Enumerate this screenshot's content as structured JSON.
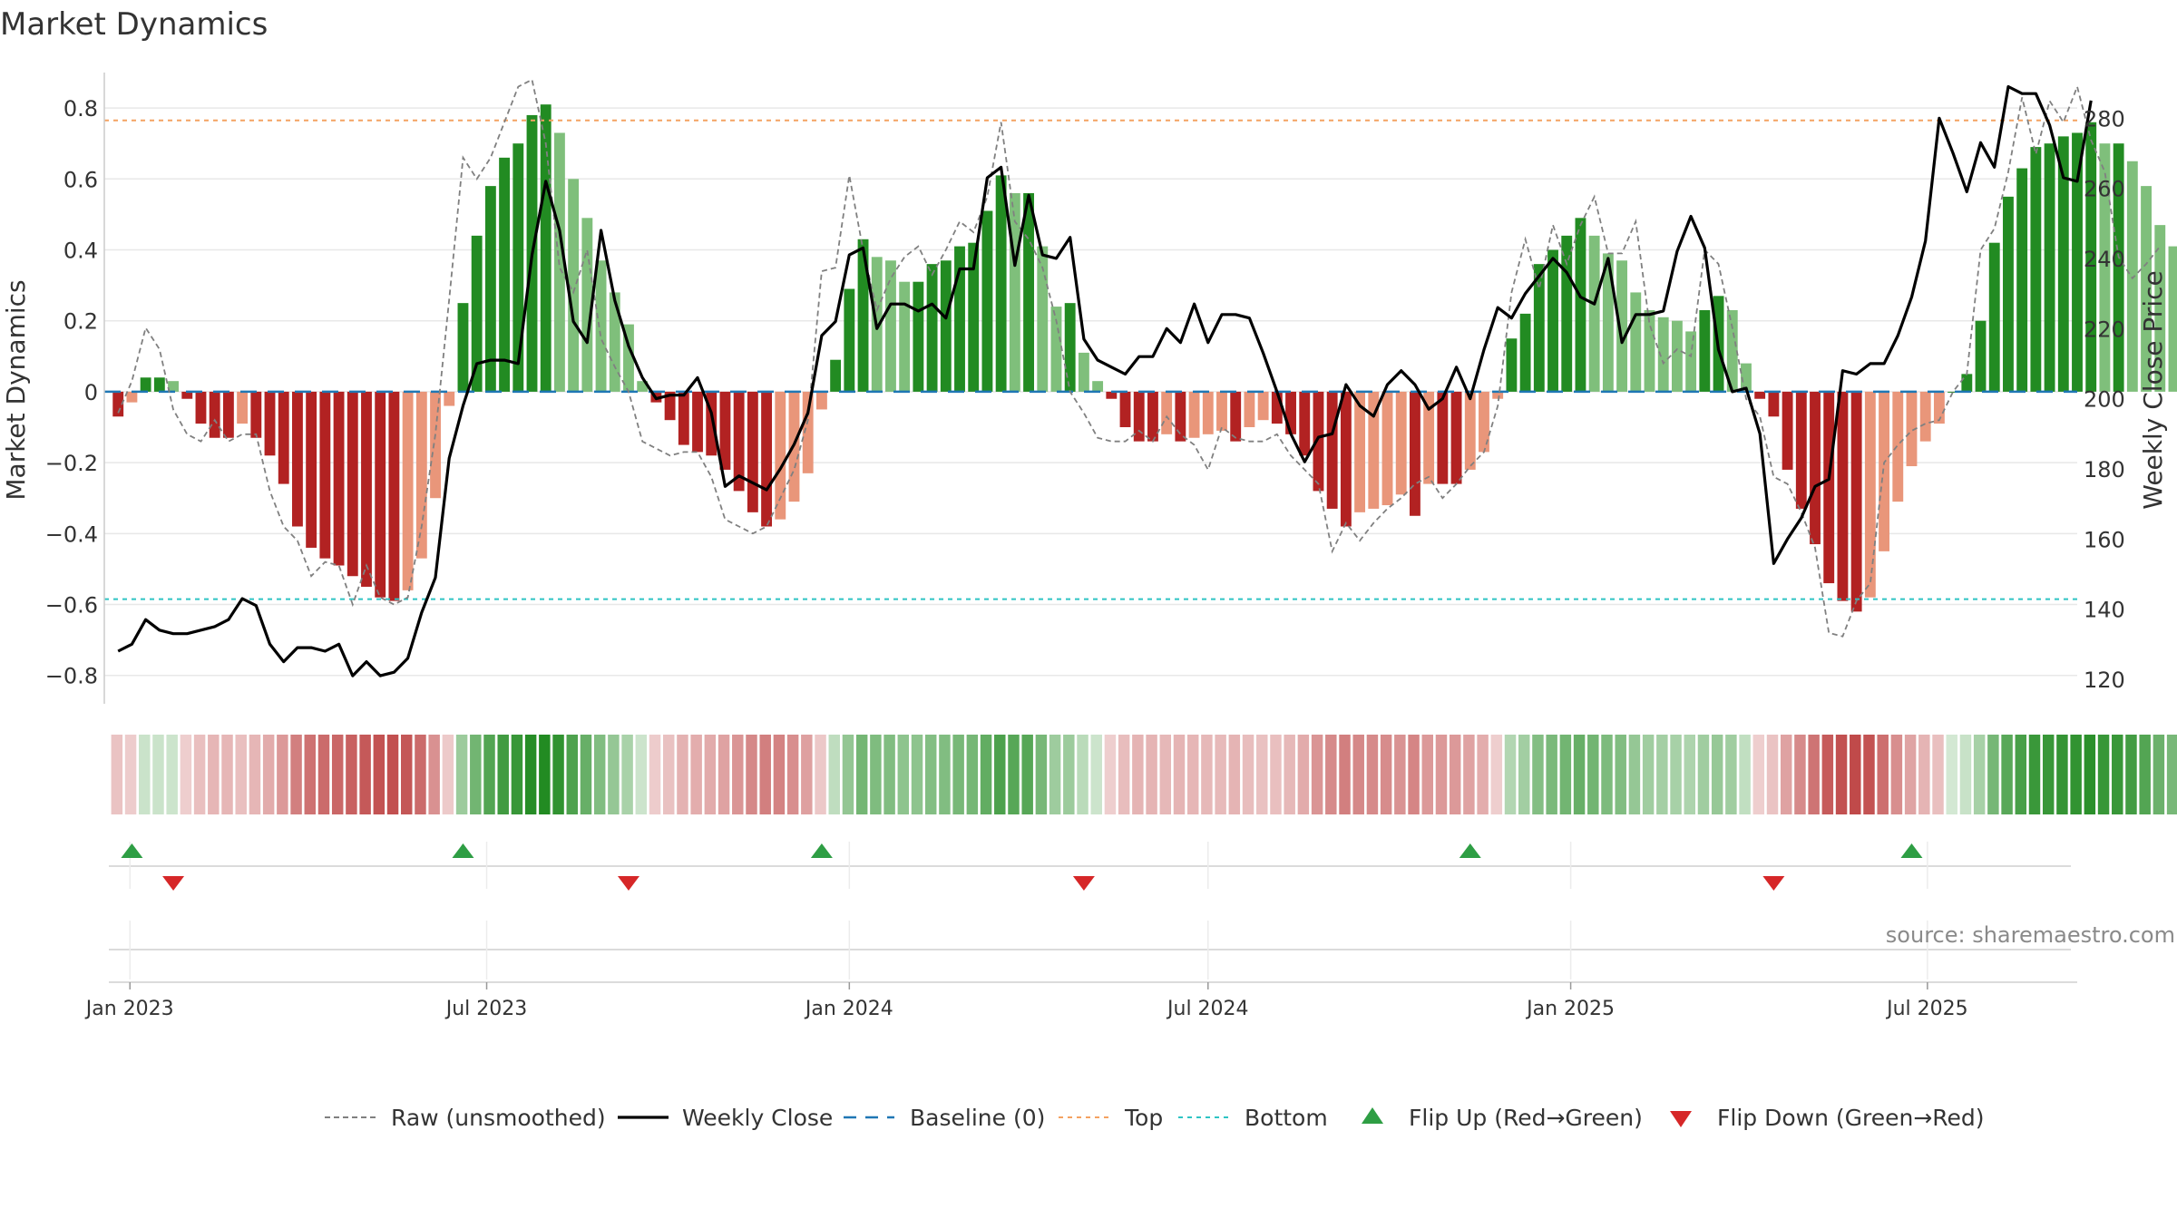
{
  "title": "Market Dynamics",
  "source": "source: sharemaestro.com",
  "colors": {
    "strong_green": "#228b22",
    "light_green": "#7fbf7b",
    "strong_red": "#b22222",
    "light_red": "#e9967a",
    "top_line": "#f4a261",
    "bottom_line": "#2ec4c4",
    "baseline": "#1f77b4",
    "raw_line": "#808080",
    "close_line": "#000000",
    "flip_up": "#2e9e44",
    "flip_down": "#d62728"
  },
  "chart_data": {
    "type": "bar",
    "title": "Market Dynamics",
    "ylabel": "Market Dynamics",
    "y2label": "Weekly Close Price",
    "ylim": [
      -0.88,
      0.9
    ],
    "y2lim": [
      113,
      293
    ],
    "yticks": [
      0.8,
      0.6,
      0.4,
      0.2,
      0,
      -0.2,
      -0.4,
      -0.6,
      -0.8
    ],
    "ytick_labels": [
      "0.8",
      "0.6",
      "0.4",
      "0.2",
      "0",
      "−0.2",
      "−0.4",
      "−0.6",
      "−0.8"
    ],
    "y2ticks": [
      280,
      260,
      240,
      220,
      200,
      180,
      160,
      140,
      120
    ],
    "xlim": [
      "2022-12-19",
      "2025-09-15"
    ],
    "xticks": [
      {
        "date": "2023-01-01",
        "label": "Jan 2023"
      },
      {
        "date": "2023-07-01",
        "label": "Jul 2023"
      },
      {
        "date": "2024-01-01",
        "label": "Jan 2024"
      },
      {
        "date": "2024-07-01",
        "label": "Jul 2024"
      },
      {
        "date": "2025-01-01",
        "label": "Jan 2025"
      },
      {
        "date": "2025-07-01",
        "label": "Jul 2025"
      }
    ],
    "top": 0.765,
    "bottom": -0.585,
    "baseline": 0,
    "legend": {
      "placement": "bottom",
      "entries": [
        "Raw (unsmoothed)",
        "Weekly Close",
        "Baseline (0)",
        "Top",
        "Bottom",
        "Flip Up (Red→Green)",
        "Flip Down (Green→Red)"
      ]
    },
    "start_date": "2022-12-26",
    "interval_days": 7,
    "series": [
      {
        "name": "Market Dynamics",
        "values": [
          -0.07,
          -0.03,
          0.04,
          0.04,
          0.03,
          -0.02,
          -0.09,
          -0.13,
          -0.13,
          -0.09,
          -0.13,
          -0.18,
          -0.26,
          -0.38,
          -0.44,
          -0.47,
          -0.49,
          -0.52,
          -0.55,
          -0.58,
          -0.59,
          -0.56,
          -0.47,
          -0.3,
          -0.04,
          0.25,
          0.44,
          0.58,
          0.66,
          0.7,
          0.78,
          0.81,
          0.73,
          0.6,
          0.49,
          0.37,
          0.28,
          0.19,
          0.03,
          -0.03,
          -0.08,
          -0.15,
          -0.17,
          -0.18,
          -0.22,
          -0.28,
          -0.34,
          -0.38,
          -0.36,
          -0.31,
          -0.23,
          -0.05,
          0.09,
          0.29,
          0.43,
          0.38,
          0.37,
          0.31,
          0.31,
          0.36,
          0.37,
          0.41,
          0.42,
          0.51,
          0.61,
          0.56,
          0.56,
          0.41,
          0.24,
          0.25,
          0.11,
          0.03,
          -0.02,
          -0.1,
          -0.14,
          -0.14,
          -0.12,
          -0.14,
          -0.13,
          -0.12,
          -0.11,
          -0.14,
          -0.1,
          -0.08,
          -0.09,
          -0.12,
          -0.18,
          -0.28,
          -0.33,
          -0.38,
          -0.34,
          -0.33,
          -0.32,
          -0.29,
          -0.35,
          -0.26,
          -0.26,
          -0.26,
          -0.22,
          -0.17,
          -0.02,
          0.15,
          0.22,
          0.36,
          0.4,
          0.44,
          0.49,
          0.44,
          0.39,
          0.37,
          0.28,
          0.23,
          0.21,
          0.2,
          0.17,
          0.23,
          0.27,
          0.23,
          0.08,
          -0.02,
          -0.07,
          -0.22,
          -0.33,
          -0.43,
          -0.54,
          -0.59,
          -0.62,
          -0.58,
          -0.45,
          -0.31,
          -0.21,
          -0.14,
          -0.09,
          0.0,
          0.05,
          0.2,
          0.42,
          0.55,
          0.63,
          0.69,
          0.7,
          0.72,
          0.73,
          0.76,
          0.7,
          0.7,
          0.65,
          0.58,
          0.47,
          0.41
        ]
      },
      {
        "name": "Raw (unsmoothed)",
        "values": [
          -0.06,
          0.03,
          0.18,
          0.12,
          -0.05,
          -0.12,
          -0.14,
          -0.08,
          -0.14,
          -0.12,
          -0.12,
          -0.28,
          -0.38,
          -0.42,
          -0.52,
          -0.48,
          -0.49,
          -0.6,
          -0.49,
          -0.58,
          -0.6,
          -0.58,
          -0.38,
          -0.12,
          0.26,
          0.66,
          0.6,
          0.66,
          0.76,
          0.86,
          0.88,
          0.7,
          0.35,
          0.28,
          0.4,
          0.15,
          0.07,
          0.0,
          -0.14,
          -0.16,
          -0.18,
          -0.17,
          -0.17,
          -0.24,
          -0.36,
          -0.38,
          -0.4,
          -0.38,
          -0.3,
          -0.22,
          -0.08,
          0.34,
          0.35,
          0.61,
          0.4,
          0.23,
          0.32,
          0.38,
          0.41,
          0.33,
          0.4,
          0.48,
          0.45,
          0.55,
          0.76,
          0.48,
          0.43,
          0.35,
          0.2,
          0.0,
          -0.06,
          -0.13,
          -0.14,
          -0.14,
          -0.11,
          -0.14,
          -0.07,
          -0.12,
          -0.15,
          -0.22,
          -0.1,
          -0.13,
          -0.14,
          -0.14,
          -0.12,
          -0.18,
          -0.22,
          -0.26,
          -0.45,
          -0.37,
          -0.42,
          -0.37,
          -0.33,
          -0.3,
          -0.26,
          -0.24,
          -0.3,
          -0.26,
          -0.21,
          -0.17,
          -0.04,
          0.28,
          0.43,
          0.29,
          0.47,
          0.36,
          0.47,
          0.55,
          0.39,
          0.39,
          0.48,
          0.19,
          0.08,
          0.12,
          0.1,
          0.4,
          0.36,
          0.18,
          -0.02,
          -0.07,
          -0.24,
          -0.26,
          -0.34,
          -0.44,
          -0.68,
          -0.69,
          -0.59,
          -0.54,
          -0.2,
          -0.15,
          -0.11,
          -0.09,
          -0.08,
          0.0,
          0.05,
          0.4,
          0.46,
          0.62,
          0.83,
          0.67,
          0.82,
          0.76,
          0.86,
          0.71,
          0.62,
          0.38,
          0.32,
          0.36,
          0.41
        ]
      },
      {
        "name": "Weekly Close",
        "axis": "right",
        "values": [
          128,
          130,
          137,
          134,
          133,
          133,
          134,
          135,
          137,
          143,
          141,
          130,
          125,
          129,
          129,
          128,
          130,
          121,
          125,
          121,
          122,
          126,
          139,
          149,
          183,
          198,
          210,
          211,
          211,
          210,
          241,
          262,
          248,
          222,
          216,
          248,
          228,
          215,
          206,
          200,
          201,
          201,
          206,
          196,
          175,
          178,
          176,
          174,
          180,
          187,
          196,
          218,
          222,
          241,
          243,
          220,
          227,
          227,
          225,
          227,
          223,
          237,
          237,
          263,
          266,
          238,
          258,
          241,
          240,
          246,
          217,
          211,
          209,
          207,
          212,
          212,
          220,
          216,
          227,
          216,
          224,
          224,
          223,
          213,
          202,
          190,
          182,
          189,
          190,
          204,
          198,
          195,
          204,
          208,
          204,
          197,
          200,
          209,
          200,
          214,
          226,
          223,
          230,
          235,
          240,
          236,
          229,
          227,
          240,
          216,
          224,
          224,
          225,
          242,
          252,
          243,
          214,
          202,
          203,
          190,
          153,
          160,
          166,
          175,
          177,
          208,
          207,
          210,
          210,
          218,
          229,
          245,
          280,
          270,
          259,
          273,
          266,
          289,
          287,
          287,
          278,
          263,
          262,
          285
        ]
      }
    ],
    "state_strip": [
      -0.07,
      -0.03,
      0.04,
      0.04,
      0.03,
      -0.02,
      -0.09,
      -0.13,
      -0.13,
      -0.09,
      -0.13,
      -0.18,
      -0.26,
      -0.38,
      -0.44,
      -0.47,
      -0.49,
      -0.52,
      -0.55,
      -0.58,
      -0.59,
      -0.56,
      -0.47,
      -0.3,
      -0.04,
      0.25,
      0.44,
      0.58,
      0.66,
      0.7,
      0.78,
      0.81,
      0.73,
      0.6,
      0.49,
      0.37,
      0.28,
      0.19,
      0.03,
      -0.03,
      -0.08,
      -0.15,
      -0.17,
      -0.18,
      -0.22,
      -0.28,
      -0.34,
      -0.38,
      -0.36,
      -0.31,
      -0.23,
      -0.05,
      0.09,
      0.29,
      0.43,
      0.38,
      0.37,
      0.31,
      0.31,
      0.36,
      0.37,
      0.41,
      0.42,
      0.51,
      0.61,
      0.56,
      0.56,
      0.41,
      0.24,
      0.25,
      0.11,
      0.03,
      -0.02,
      -0.1,
      -0.14,
      -0.14,
      -0.12,
      -0.14,
      -0.13,
      -0.12,
      -0.11,
      -0.14,
      -0.1,
      -0.08,
      -0.09,
      -0.12,
      -0.18,
      -0.28,
      -0.33,
      -0.38,
      -0.34,
      -0.33,
      -0.32,
      -0.29,
      -0.35,
      -0.26,
      -0.26,
      -0.26,
      -0.22,
      -0.17,
      -0.02,
      0.15,
      0.22,
      0.36,
      0.4,
      0.44,
      0.49,
      0.44,
      0.39,
      0.37,
      0.28,
      0.23,
      0.21,
      0.2,
      0.17,
      0.23,
      0.27,
      0.23,
      0.08,
      -0.02,
      -0.07,
      -0.22,
      -0.33,
      -0.43,
      -0.54,
      -0.59,
      -0.62,
      -0.58,
      -0.45,
      -0.31,
      -0.21,
      -0.14,
      -0.09,
      0.0,
      0.05,
      0.2,
      0.42,
      0.55,
      0.63,
      0.69,
      0.7,
      0.72,
      0.73,
      0.76,
      0.7,
      0.7,
      0.65,
      0.58,
      0.47,
      0.41
    ],
    "flips": [
      {
        "date": "2023-01-02",
        "type": "up"
      },
      {
        "date": "2023-01-23",
        "type": "down"
      },
      {
        "date": "2023-06-19",
        "type": "up"
      },
      {
        "date": "2023-09-11",
        "type": "down"
      },
      {
        "date": "2023-12-18",
        "type": "up"
      },
      {
        "date": "2024-04-29",
        "type": "down"
      },
      {
        "date": "2024-11-11",
        "type": "up"
      },
      {
        "date": "2025-04-14",
        "type": "down"
      },
      {
        "date": "2025-06-23",
        "type": "up"
      }
    ]
  }
}
